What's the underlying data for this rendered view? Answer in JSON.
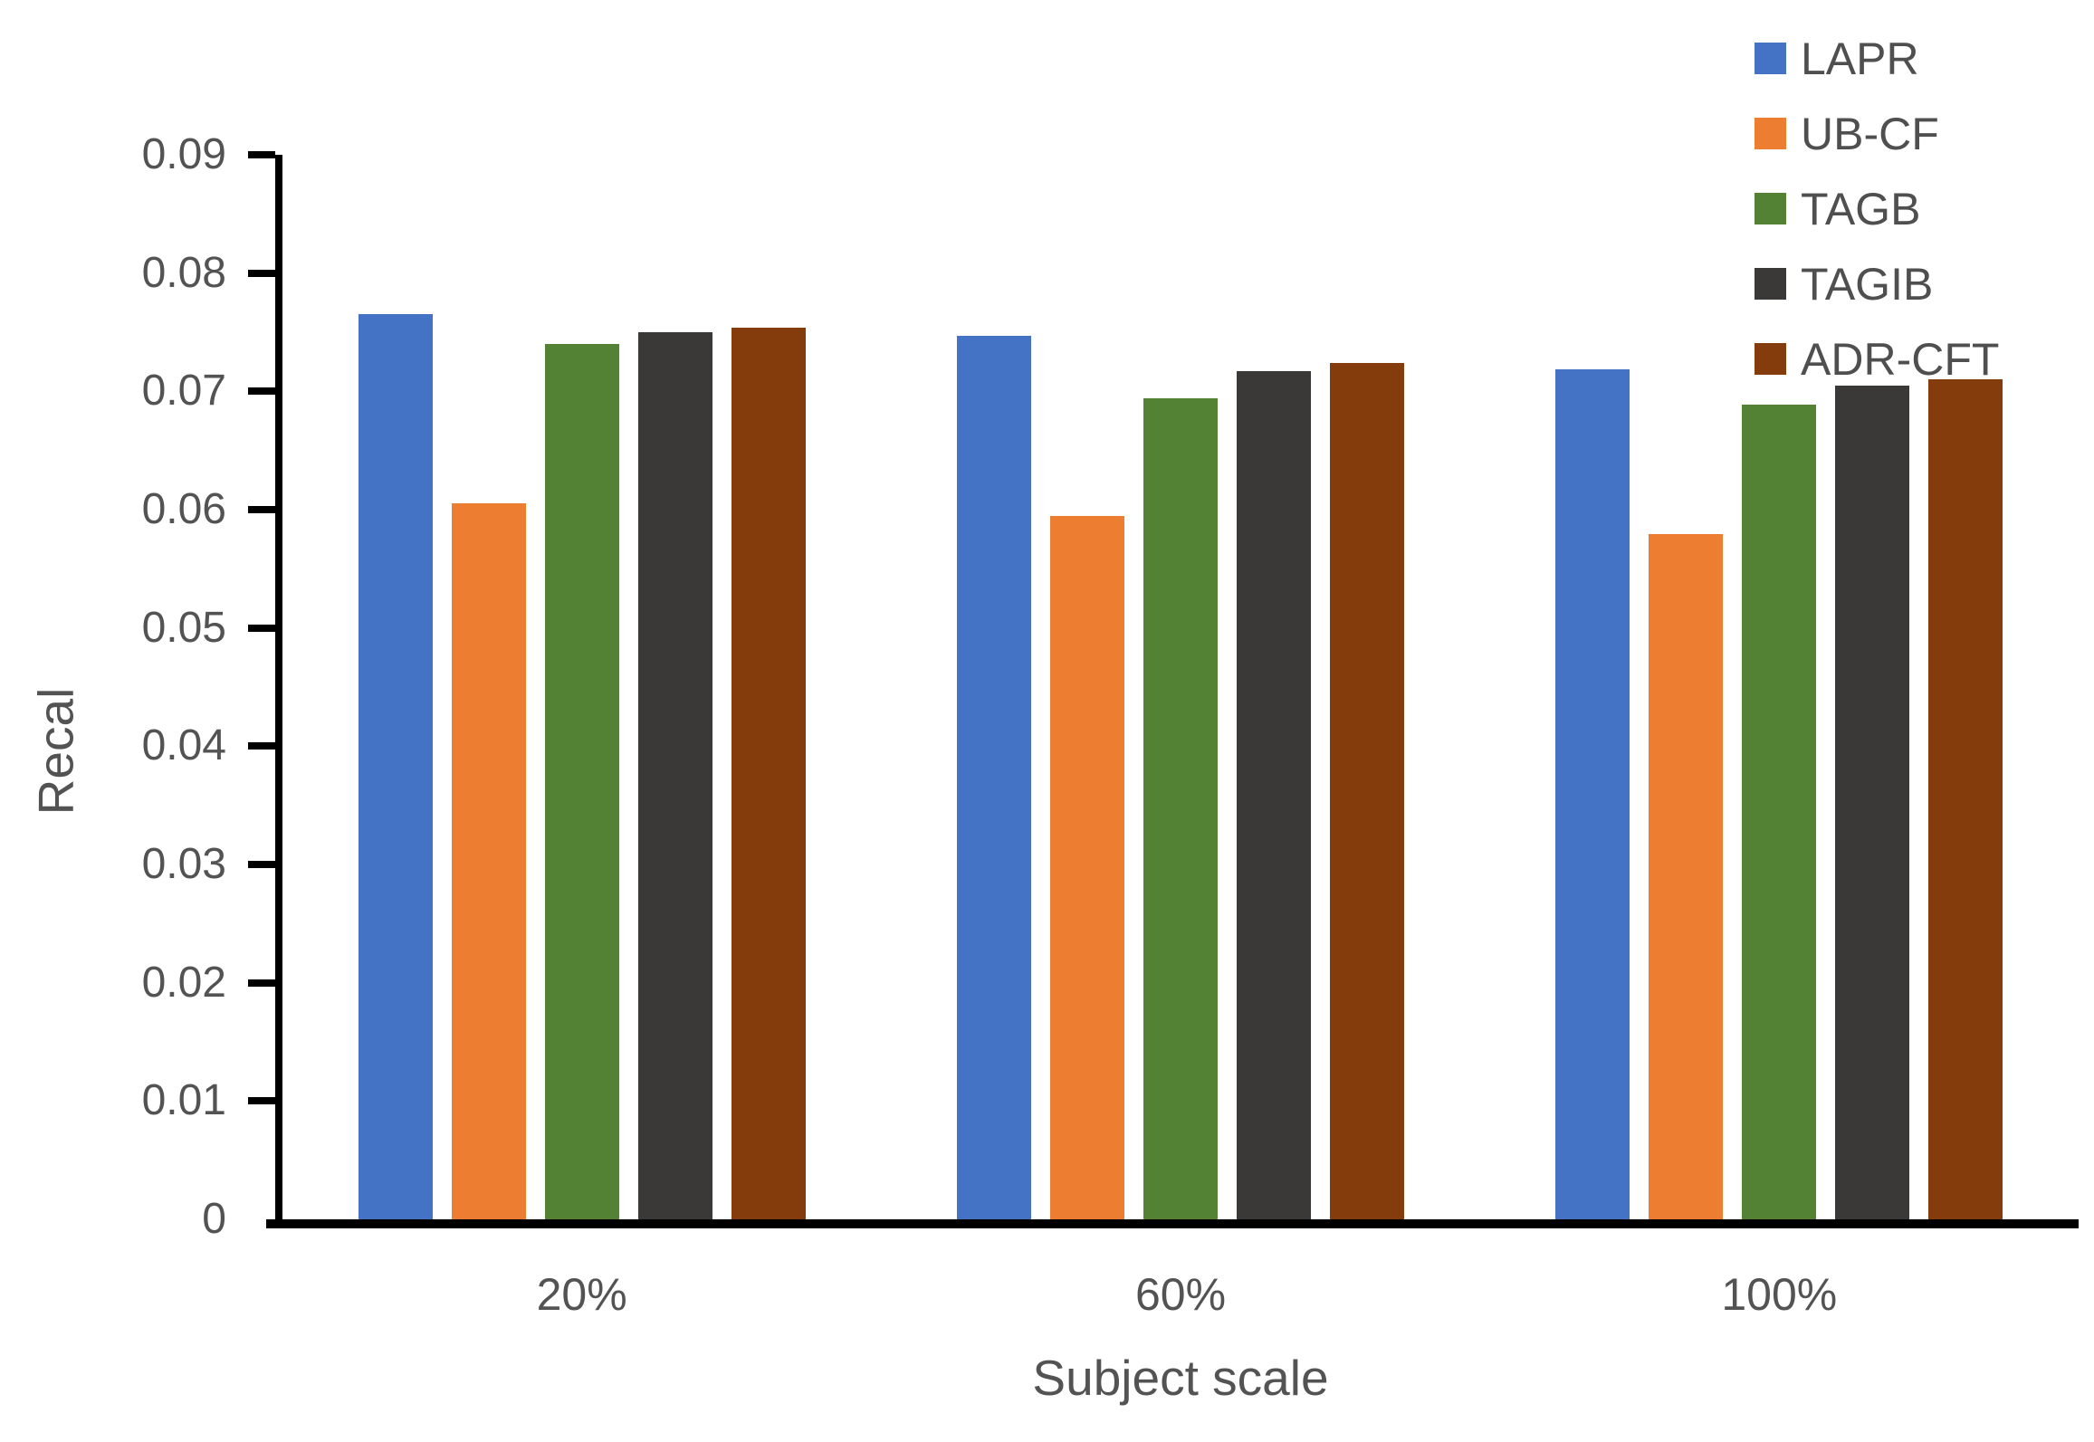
{
  "chart_data": {
    "type": "bar",
    "title": "",
    "xlabel": "Subject scale",
    "ylabel": "Recal",
    "categories": [
      "20%",
      "60%",
      "100%"
    ],
    "series": [
      {
        "name": "LAPR",
        "color": "#4472C4",
        "values": [
          0.0765,
          0.0747,
          0.0719
        ]
      },
      {
        "name": "UB-CF",
        "color": "#ED7D31",
        "values": [
          0.0605,
          0.0595,
          0.0579
        ]
      },
      {
        "name": "TAGB",
        "color": "#548235",
        "values": [
          0.074,
          0.0694,
          0.0689
        ]
      },
      {
        "name": "TAGIB",
        "color": "#3B3838",
        "values": [
          0.075,
          0.0717,
          0.0705
        ]
      },
      {
        "name": "ADR-CFT",
        "color": "#843C0C",
        "values": [
          0.0754,
          0.0724,
          0.071
        ]
      }
    ],
    "ylim": [
      0,
      0.09
    ],
    "ytick_step": 0.01,
    "ytick_labels": [
      "0",
      "0.01",
      "0.02",
      "0.03",
      "0.04",
      "0.05",
      "0.06",
      "0.07",
      "0.08",
      "0.09"
    ],
    "grid": false,
    "legend_position": "top-right",
    "axis_color": "#000000",
    "text_color": "#535353"
  }
}
